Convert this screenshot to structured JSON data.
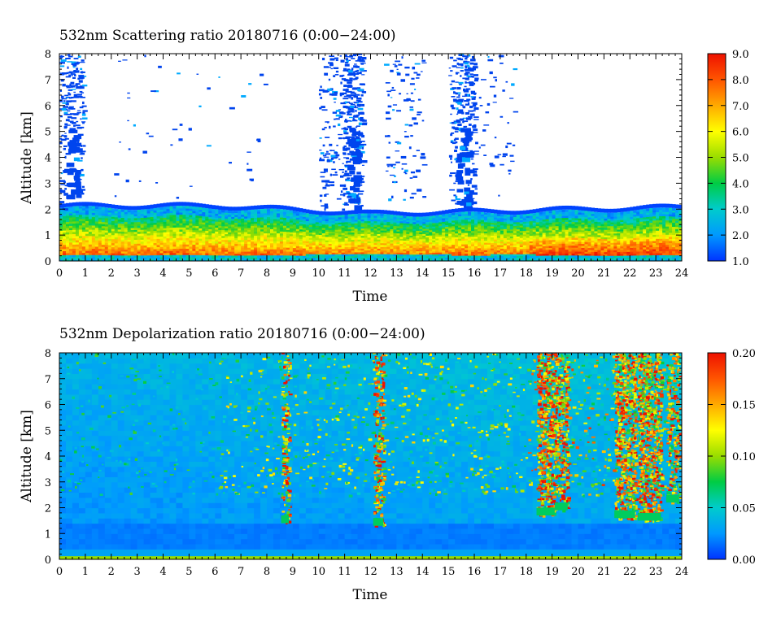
{
  "chart_data": [
    {
      "type": "heatmap",
      "title": "532nm Scattering ratio  20180716 (0:00−24:00)",
      "xlabel": "Time",
      "ylabel": "Altitude [km]",
      "x_ticks": [
        "0",
        "1",
        "2",
        "3",
        "4",
        "5",
        "6",
        "7",
        "8",
        "9",
        "10",
        "11",
        "12",
        "13",
        "14",
        "15",
        "16",
        "17",
        "18",
        "19",
        "20",
        "21",
        "22",
        "23",
        "24"
      ],
      "y_ticks": [
        "0",
        "1",
        "2",
        "3",
        "4",
        "5",
        "6",
        "7",
        "8"
      ],
      "xlim": [
        0,
        24
      ],
      "ylim": [
        0,
        8
      ],
      "colorbar": {
        "min": 1.0,
        "max": 9.0,
        "ticks": [
          "1.0",
          "2.0",
          "3.0",
          "4.0",
          "5.0",
          "6.0",
          "7.0",
          "8.0",
          "9.0"
        ]
      },
      "colormap": [
        "#0033ff",
        "#0099ff",
        "#00cccc",
        "#00cc44",
        "#99dd00",
        "#ffff00",
        "#ffaa00",
        "#ff5500",
        "#ee1100"
      ],
      "features": [
        {
          "desc": "boundary layer top",
          "altitude_km": [
            2.0,
            1.6
          ]
        },
        {
          "desc": "high-ratio aerosol layer",
          "altitude_km": [
            0.3,
            1.5
          ],
          "value": 8.0
        },
        {
          "desc": "cloud columns",
          "time_h": [
            0.3,
            11.1,
            15.4
          ],
          "top_km": 8.0
        }
      ]
    },
    {
      "type": "heatmap",
      "title": "532nm Depolarization ratio  20180716 (0:00−24:00)",
      "xlabel": "Time",
      "ylabel": "Altitude [km]",
      "x_ticks": [
        "0",
        "1",
        "2",
        "3",
        "4",
        "5",
        "6",
        "7",
        "8",
        "9",
        "10",
        "11",
        "12",
        "13",
        "14",
        "15",
        "16",
        "17",
        "18",
        "19",
        "20",
        "21",
        "22",
        "23",
        "24"
      ],
      "y_ticks": [
        "0",
        "1",
        "2",
        "3",
        "4",
        "5",
        "6",
        "7",
        "8"
      ],
      "xlim": [
        0,
        24
      ],
      "ylim": [
        0,
        8
      ],
      "colorbar": {
        "min": 0.0,
        "max": 0.2,
        "ticks": [
          "0.00",
          "0.05",
          "0.10",
          "0.15",
          "0.20"
        ]
      },
      "colormap": [
        "#0033ff",
        "#0099ff",
        "#00cccc",
        "#00cc44",
        "#99dd00",
        "#ffff00",
        "#ffaa00",
        "#ff5500",
        "#ee1100"
      ],
      "features": [
        {
          "desc": "background",
          "value": 0.03
        },
        {
          "desc": "high depolarization columns",
          "time_h": [
            8.7,
            12.3,
            18.8,
            19.3,
            21.8,
            22.8
          ],
          "value": 0.18
        }
      ]
    }
  ]
}
